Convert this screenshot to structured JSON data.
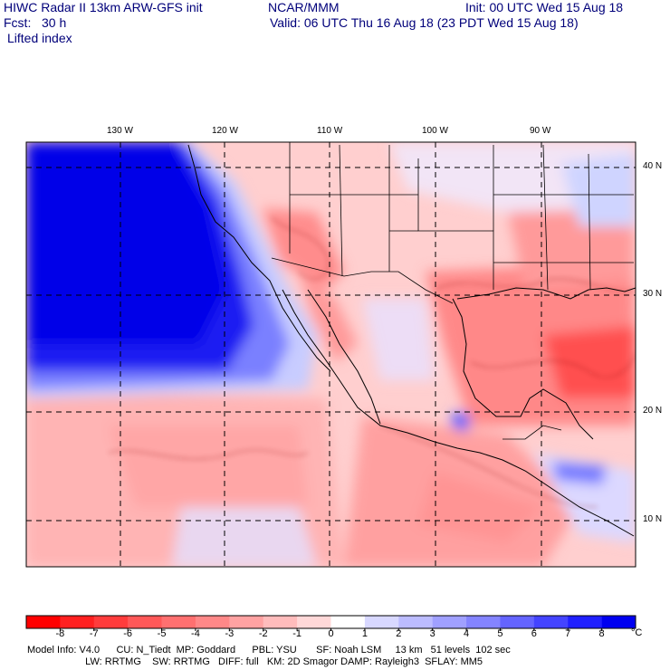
{
  "header": {
    "line1_left": "HIWC Radar II 13km ARW-GFS init",
    "line1_mid": "NCAR/MMM",
    "line1_right": "Init: 00 UTC Wed 15 Aug 18",
    "line2_left": "Fcst:   30 h",
    "line2_right": "Valid: 06 UTC Thu 16 Aug 18 (23 PDT Wed 15 Aug 18)",
    "field": "Lifted index"
  },
  "map": {
    "lon_labels": [
      "130 W",
      "120 W",
      "110 W",
      "100 W",
      "90 W"
    ],
    "lat_labels": [
      "40 N",
      "30 N",
      "20 N",
      "10 N"
    ]
  },
  "colorbar": {
    "ticks": [
      "-8",
      "-7",
      "-6",
      "-5",
      "-4",
      "-3",
      "-2",
      "-1",
      "0",
      "1",
      "2",
      "3",
      "4",
      "5",
      "6",
      "7",
      "8"
    ],
    "unit": "°C",
    "colors": [
      "#ff0000",
      "#ff2020",
      "#ff3c3c",
      "#ff5858",
      "#ff7070",
      "#ff8888",
      "#ffa2a2",
      "#ffbcbc",
      "#ffd8d8",
      "#ffffff",
      "#d8d8ff",
      "#bcbcff",
      "#a0a0ff",
      "#8484ff",
      "#6464ff",
      "#4444ff",
      "#2020ff",
      "#0000f0"
    ]
  },
  "model_info": {
    "line1": "Model Info: V4.0      CU: N_Tiedt  MP: Goddard      PBL: YSU       SF: Noah LSM     13 km   51 levels  102 sec",
    "line2": "                     LW: RRTMG    SW: RRTMG   DIFF: full   KM: 2D Smagor DAMP: Rayleigh3  SFLAY: MM5"
  }
}
